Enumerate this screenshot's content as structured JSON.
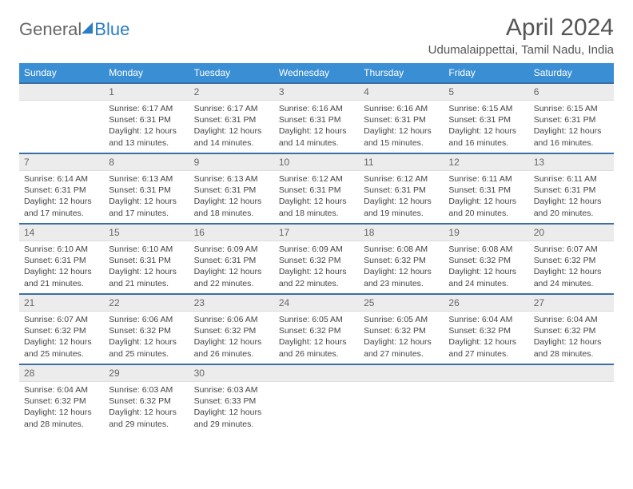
{
  "logo": {
    "part1": "General",
    "part2": "Blue"
  },
  "title": "April 2024",
  "location": "Udumalaippettai, Tamil Nadu, India",
  "colors": {
    "header_bg": "#3a8fd4",
    "header_text": "#ffffff",
    "daynum_bg": "#ececec",
    "row_border": "#3a6fa5",
    "logo_blue": "#2a7ec5",
    "text": "#444444"
  },
  "day_headers": [
    "Sunday",
    "Monday",
    "Tuesday",
    "Wednesday",
    "Thursday",
    "Friday",
    "Saturday"
  ],
  "start_offset": 1,
  "days": [
    {
      "n": 1,
      "sunrise": "6:17 AM",
      "sunset": "6:31 PM",
      "daylight": "12 hours and 13 minutes."
    },
    {
      "n": 2,
      "sunrise": "6:17 AM",
      "sunset": "6:31 PM",
      "daylight": "12 hours and 14 minutes."
    },
    {
      "n": 3,
      "sunrise": "6:16 AM",
      "sunset": "6:31 PM",
      "daylight": "12 hours and 14 minutes."
    },
    {
      "n": 4,
      "sunrise": "6:16 AM",
      "sunset": "6:31 PM",
      "daylight": "12 hours and 15 minutes."
    },
    {
      "n": 5,
      "sunrise": "6:15 AM",
      "sunset": "6:31 PM",
      "daylight": "12 hours and 16 minutes."
    },
    {
      "n": 6,
      "sunrise": "6:15 AM",
      "sunset": "6:31 PM",
      "daylight": "12 hours and 16 minutes."
    },
    {
      "n": 7,
      "sunrise": "6:14 AM",
      "sunset": "6:31 PM",
      "daylight": "12 hours and 17 minutes."
    },
    {
      "n": 8,
      "sunrise": "6:13 AM",
      "sunset": "6:31 PM",
      "daylight": "12 hours and 17 minutes."
    },
    {
      "n": 9,
      "sunrise": "6:13 AM",
      "sunset": "6:31 PM",
      "daylight": "12 hours and 18 minutes."
    },
    {
      "n": 10,
      "sunrise": "6:12 AM",
      "sunset": "6:31 PM",
      "daylight": "12 hours and 18 minutes."
    },
    {
      "n": 11,
      "sunrise": "6:12 AM",
      "sunset": "6:31 PM",
      "daylight": "12 hours and 19 minutes."
    },
    {
      "n": 12,
      "sunrise": "6:11 AM",
      "sunset": "6:31 PM",
      "daylight": "12 hours and 20 minutes."
    },
    {
      "n": 13,
      "sunrise": "6:11 AM",
      "sunset": "6:31 PM",
      "daylight": "12 hours and 20 minutes."
    },
    {
      "n": 14,
      "sunrise": "6:10 AM",
      "sunset": "6:31 PM",
      "daylight": "12 hours and 21 minutes."
    },
    {
      "n": 15,
      "sunrise": "6:10 AM",
      "sunset": "6:31 PM",
      "daylight": "12 hours and 21 minutes."
    },
    {
      "n": 16,
      "sunrise": "6:09 AM",
      "sunset": "6:31 PM",
      "daylight": "12 hours and 22 minutes."
    },
    {
      "n": 17,
      "sunrise": "6:09 AM",
      "sunset": "6:32 PM",
      "daylight": "12 hours and 22 minutes."
    },
    {
      "n": 18,
      "sunrise": "6:08 AM",
      "sunset": "6:32 PM",
      "daylight": "12 hours and 23 minutes."
    },
    {
      "n": 19,
      "sunrise": "6:08 AM",
      "sunset": "6:32 PM",
      "daylight": "12 hours and 24 minutes."
    },
    {
      "n": 20,
      "sunrise": "6:07 AM",
      "sunset": "6:32 PM",
      "daylight": "12 hours and 24 minutes."
    },
    {
      "n": 21,
      "sunrise": "6:07 AM",
      "sunset": "6:32 PM",
      "daylight": "12 hours and 25 minutes."
    },
    {
      "n": 22,
      "sunrise": "6:06 AM",
      "sunset": "6:32 PM",
      "daylight": "12 hours and 25 minutes."
    },
    {
      "n": 23,
      "sunrise": "6:06 AM",
      "sunset": "6:32 PM",
      "daylight": "12 hours and 26 minutes."
    },
    {
      "n": 24,
      "sunrise": "6:05 AM",
      "sunset": "6:32 PM",
      "daylight": "12 hours and 26 minutes."
    },
    {
      "n": 25,
      "sunrise": "6:05 AM",
      "sunset": "6:32 PM",
      "daylight": "12 hours and 27 minutes."
    },
    {
      "n": 26,
      "sunrise": "6:04 AM",
      "sunset": "6:32 PM",
      "daylight": "12 hours and 27 minutes."
    },
    {
      "n": 27,
      "sunrise": "6:04 AM",
      "sunset": "6:32 PM",
      "daylight": "12 hours and 28 minutes."
    },
    {
      "n": 28,
      "sunrise": "6:04 AM",
      "sunset": "6:32 PM",
      "daylight": "12 hours and 28 minutes."
    },
    {
      "n": 29,
      "sunrise": "6:03 AM",
      "sunset": "6:32 PM",
      "daylight": "12 hours and 29 minutes."
    },
    {
      "n": 30,
      "sunrise": "6:03 AM",
      "sunset": "6:33 PM",
      "daylight": "12 hours and 29 minutes."
    }
  ],
  "labels": {
    "sunrise": "Sunrise:",
    "sunset": "Sunset:",
    "daylight": "Daylight:"
  }
}
